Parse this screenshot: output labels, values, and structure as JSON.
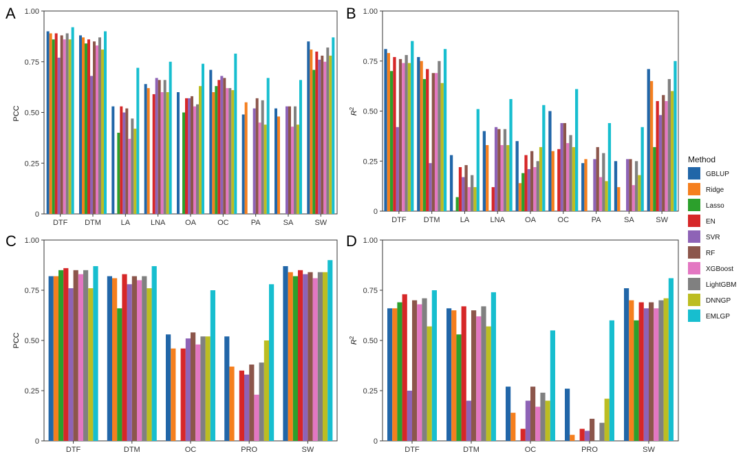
{
  "legend": {
    "title": "Method",
    "methods": [
      "GBLUP",
      "Ridge",
      "Lasso",
      "EN",
      "SVR",
      "RF",
      "XGBoost",
      "LightGBM",
      "DNNGP",
      "EMLGP"
    ],
    "colors": [
      "#2166a8",
      "#f57f1e",
      "#2ca02c",
      "#d62728",
      "#8e63b6",
      "#8c564b",
      "#e377c2",
      "#808080",
      "#bcbd22",
      "#17becf"
    ]
  },
  "chart_data": [
    {
      "panel": "A",
      "type": "bar",
      "ylabel": "PCC",
      "ylim": [
        0,
        1.0
      ],
      "yticks": [
        "0",
        "0.25",
        "0.50",
        "0.75",
        "1.00"
      ],
      "categories": [
        "DTF",
        "DTM",
        "LA",
        "LNA",
        "OA",
        "OC",
        "PA",
        "SA",
        "SW"
      ],
      "values": [
        [
          0.9,
          0.89,
          0.86,
          0.89,
          0.77,
          0.88,
          0.86,
          0.89,
          0.86,
          0.92
        ],
        [
          0.88,
          0.87,
          0.84,
          0.86,
          0.68,
          0.85,
          0.83,
          0.87,
          0.81,
          0.9
        ],
        [
          0.53,
          0,
          0.4,
          0.53,
          0.5,
          0.52,
          0.37,
          0.47,
          0.42,
          0.72
        ],
        [
          0.64,
          0.62,
          0,
          0.59,
          0.67,
          0.66,
          0.6,
          0.66,
          0.6,
          0.75
        ],
        [
          0.6,
          0,
          0.5,
          0.57,
          0.57,
          0.58,
          0.53,
          0.54,
          0.63,
          0.74
        ],
        [
          0.71,
          0.6,
          0.63,
          0.66,
          0.68,
          0.67,
          0.62,
          0.62,
          0.61,
          0.79
        ],
        [
          0.49,
          0.55,
          0,
          0,
          0.52,
          0.57,
          0.45,
          0.56,
          0.44,
          0.67
        ],
        [
          0.52,
          0.48,
          0,
          0,
          0.53,
          0.53,
          0.43,
          0.53,
          0.44,
          0.66
        ],
        [
          0.85,
          0.81,
          0.71,
          0.8,
          0.76,
          0.78,
          0.75,
          0.82,
          0.78,
          0.87
        ]
      ]
    },
    {
      "panel": "B",
      "type": "bar",
      "ylabel": "R",
      "ylabel_sup": "2",
      "ylim": [
        0,
        1.0
      ],
      "yticks": [
        "0",
        "0.25",
        "0.50",
        "0.75",
        "1.00"
      ],
      "categories": [
        "DTF",
        "DTM",
        "LA",
        "LNA",
        "OA",
        "OC",
        "PA",
        "SA",
        "SW"
      ],
      "values": [
        [
          0.81,
          0.79,
          0.7,
          0.77,
          0.42,
          0.76,
          0.74,
          0.78,
          0.74,
          0.85
        ],
        [
          0.77,
          0.75,
          0.66,
          0.71,
          0.24,
          0.69,
          0.69,
          0.75,
          0.64,
          0.81
        ],
        [
          0.28,
          0,
          0.07,
          0.22,
          0.17,
          0.23,
          0.12,
          0.18,
          0.12,
          0.51
        ],
        [
          0.4,
          0.33,
          0,
          0.12,
          0.42,
          0.41,
          0.33,
          0.41,
          0.33,
          0.56
        ],
        [
          0.35,
          0.14,
          0.19,
          0.28,
          0.21,
          0.3,
          0.22,
          0.25,
          0.32,
          0.53
        ],
        [
          0.5,
          0.3,
          0,
          0.31,
          0.44,
          0.44,
          0.34,
          0.38,
          0.32,
          0.61
        ],
        [
          0.24,
          0.26,
          0,
          0,
          0.26,
          0.32,
          0.17,
          0.29,
          0.15,
          0.44
        ],
        [
          0.25,
          0.12,
          0,
          0,
          0.26,
          0.26,
          0.13,
          0.25,
          0.18,
          0.42
        ],
        [
          0.71,
          0.65,
          0.32,
          0.55,
          0.48,
          0.58,
          0.55,
          0.66,
          0.6,
          0.75
        ]
      ]
    },
    {
      "panel": "C",
      "type": "bar",
      "ylabel": "PCC",
      "ylim": [
        0,
        1.0
      ],
      "yticks": [
        "0",
        "0.25",
        "0.50",
        "0.75",
        "1.00"
      ],
      "categories": [
        "DTF",
        "DTM",
        "OC",
        "PRO",
        "SW"
      ],
      "values": [
        [
          0.82,
          0.82,
          0.85,
          0.86,
          0.76,
          0.85,
          0.83,
          0.85,
          0.76,
          0.87
        ],
        [
          0.82,
          0.81,
          0.66,
          0.83,
          0.78,
          0.82,
          0.8,
          0.82,
          0.76,
          0.87
        ],
        [
          0.53,
          0.46,
          0,
          0.46,
          0.51,
          0.54,
          0.48,
          0.52,
          0.52,
          0.75
        ],
        [
          0.52,
          0.37,
          0,
          0.35,
          0.33,
          0.38,
          0.23,
          0.39,
          0.5,
          0.78
        ],
        [
          0.87,
          0.84,
          0.82,
          0.85,
          0.83,
          0.84,
          0.81,
          0.84,
          0.84,
          0.9
        ]
      ]
    },
    {
      "panel": "D",
      "type": "bar",
      "ylabel": "R",
      "ylabel_sup": "2",
      "ylim": [
        0,
        1.0
      ],
      "yticks": [
        "0",
        "0.25",
        "0.50",
        "0.75",
        "1.00"
      ],
      "categories": [
        "DTF",
        "DTM",
        "OC",
        "PRO",
        "SW"
      ],
      "values": [
        [
          0.66,
          0.66,
          0.69,
          0.73,
          0.25,
          0.7,
          0.68,
          0.71,
          0.57,
          0.75
        ],
        [
          0.66,
          0.65,
          0.53,
          0.67,
          0.2,
          0.65,
          0.62,
          0.67,
          0.57,
          0.74
        ],
        [
          0.27,
          0.14,
          0,
          0.06,
          0.2,
          0.27,
          0.17,
          0.24,
          0.2,
          0.55
        ],
        [
          0.26,
          0.03,
          0,
          0.06,
          0.05,
          0.11,
          0,
          0.09,
          0.21,
          0.6
        ],
        [
          0.76,
          0.7,
          0.6,
          0.69,
          0.66,
          0.69,
          0.66,
          0.7,
          0.71,
          0.81
        ]
      ]
    }
  ]
}
